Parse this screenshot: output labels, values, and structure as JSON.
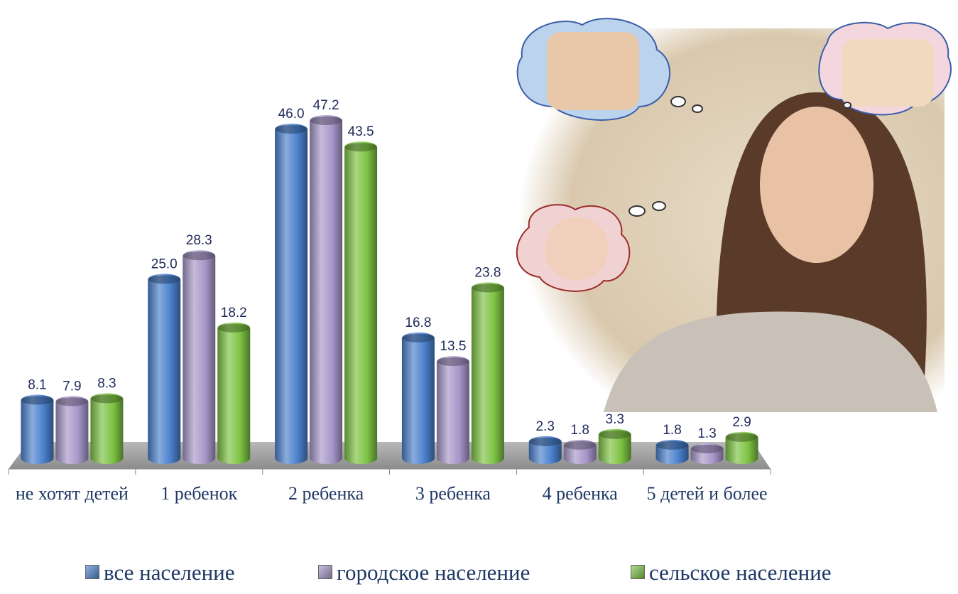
{
  "chart_data": {
    "type": "bar",
    "categories": [
      "не хотят детей",
      "1 ребенок",
      "2 ребенка",
      "3 ребенка",
      "4 ребенка",
      "5 детей и более"
    ],
    "series": [
      {
        "name": "все население",
        "color": "#4a80cc",
        "values": [
          8.1,
          25.0,
          46.0,
          16.8,
          2.3,
          1.8
        ],
        "value_labels": [
          "8.1",
          "25.0",
          "46.0",
          "16.8",
          "2.3",
          "1.8"
        ]
      },
      {
        "name": "городское население",
        "color": "#a596c8",
        "values": [
          7.9,
          28.3,
          47.2,
          13.5,
          1.8,
          1.3
        ],
        "value_labels": [
          "7.9",
          "28.3",
          "47.2",
          "13.5",
          "1.8",
          "1.3"
        ]
      },
      {
        "name": "сельское население",
        "color": "#7cc242",
        "values": [
          8.3,
          18.2,
          43.5,
          23.8,
          3.3,
          2.9
        ],
        "value_labels": [
          "8.3",
          "18.2",
          "43.5",
          "23.8",
          "3.3",
          "2.9"
        ]
      }
    ]
  }
}
